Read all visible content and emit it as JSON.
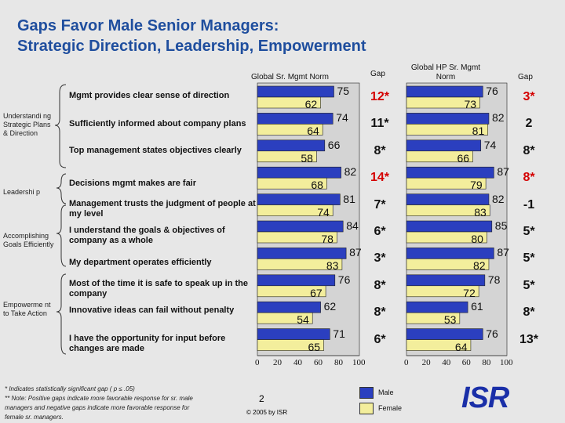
{
  "title_line1": "Gaps Favor Male Senior Managers:",
  "title_line2": "Strategic Direction, Leadership, Empowerment",
  "headers": {
    "global_norm": "Global Sr. Mgmt Norm",
    "gap1": "Gap",
    "hp_norm_line1": "Global HP Sr. Mgmt",
    "hp_norm_line2": "Norm",
    "gap2": "Gap"
  },
  "categories": [
    {
      "label": "Understandi ng Strategic Plans & Direction"
    },
    {
      "label": "Leadershi p"
    },
    {
      "label": "Accomplishing Goals Efficiently"
    },
    {
      "label": "Empowerme nt to Take Action"
    }
  ],
  "chart_data": {
    "type": "bar",
    "orientation": "horizontal",
    "xlim": [
      0,
      100
    ],
    "ticks": [
      "0",
      "20",
      "40",
      "60",
      "80",
      "100"
    ],
    "legend": [
      {
        "name": "Male",
        "color": "#2b3fbf"
      },
      {
        "name": "Female",
        "color": "#f3ee9c"
      }
    ],
    "rows": [
      {
        "question": "Mgmt provides clear sense of direction",
        "global_male": 75,
        "global_female": 62,
        "gap1": "12*",
        "gap1_color": "#d40000",
        "hp_male": 76,
        "hp_female": 73,
        "gap2": "3*",
        "gap2_color": "#d40000"
      },
      {
        "question": "Sufficiently informed about company plans",
        "global_male": 74,
        "global_female": 64,
        "gap1": "11*",
        "gap1_color": "#111111",
        "hp_male": 82,
        "hp_female": 81,
        "gap2": "2",
        "gap2_color": "#111111"
      },
      {
        "question": "Top management states objectives clearly",
        "global_male": 66,
        "global_female": 58,
        "gap1": "8*",
        "gap1_color": "#111111",
        "hp_male": 74,
        "hp_female": 66,
        "gap2": "8*",
        "gap2_color": "#111111"
      },
      {
        "question": "Decisions mgmt makes are fair",
        "global_male": 82,
        "global_female": 68,
        "gap1": "14*",
        "gap1_color": "#d40000",
        "hp_male": 87,
        "hp_female": 79,
        "gap2": "8*",
        "gap2_color": "#d40000"
      },
      {
        "question": "Management trusts the judgment of people at my level",
        "global_male": 81,
        "global_female": 74,
        "gap1": "7*",
        "gap1_color": "#111111",
        "hp_male": 82,
        "hp_female": 83,
        "gap2": "-1",
        "gap2_color": "#111111"
      },
      {
        "question": "I understand the goals & objectives of company as a whole",
        "global_male": 84,
        "global_female": 78,
        "gap1": "6*",
        "gap1_color": "#111111",
        "hp_male": 85,
        "hp_female": 80,
        "gap2": "5*",
        "gap2_color": "#111111"
      },
      {
        "question": "My department operates efficiently",
        "global_male": 87,
        "global_female": 83,
        "gap1": "3*",
        "gap1_color": "#111111",
        "hp_male": 87,
        "hp_female": 82,
        "gap2": "5*",
        "gap2_color": "#111111"
      },
      {
        "question": "Most of the time it is safe to speak up in the company",
        "global_male": 76,
        "global_female": 67,
        "gap1": "8*",
        "gap1_color": "#111111",
        "hp_male": 78,
        "hp_female": 72,
        "gap2": "5*",
        "gap2_color": "#111111"
      },
      {
        "question": "Innovative ideas can fail without penalty",
        "global_male": 62,
        "global_female": 54,
        "gap1": "8*",
        "gap1_color": "#111111",
        "hp_male": 61,
        "hp_female": 53,
        "gap2": "8*",
        "gap2_color": "#111111"
      },
      {
        "question": "I have the opportunity for input before changes are made",
        "global_male": 71,
        "global_female": 65,
        "gap1": "6*",
        "gap1_color": "#111111",
        "hp_male": 76,
        "hp_female": 64,
        "gap2": "13*",
        "gap2_color": "#111111"
      }
    ]
  },
  "footnote_line1": "* Indicates statistically significant gap ( p ≤ .05)",
  "footnote_line2": "** Note: Positive gaps indicate more favorable response for sr. male",
  "footnote_line3": "managers and negative gaps indicate more favorable response for",
  "footnote_line4": "female sr. managers.",
  "page_number": "2",
  "copyright": "© 2005 by ISR",
  "logo_text": "ISR"
}
